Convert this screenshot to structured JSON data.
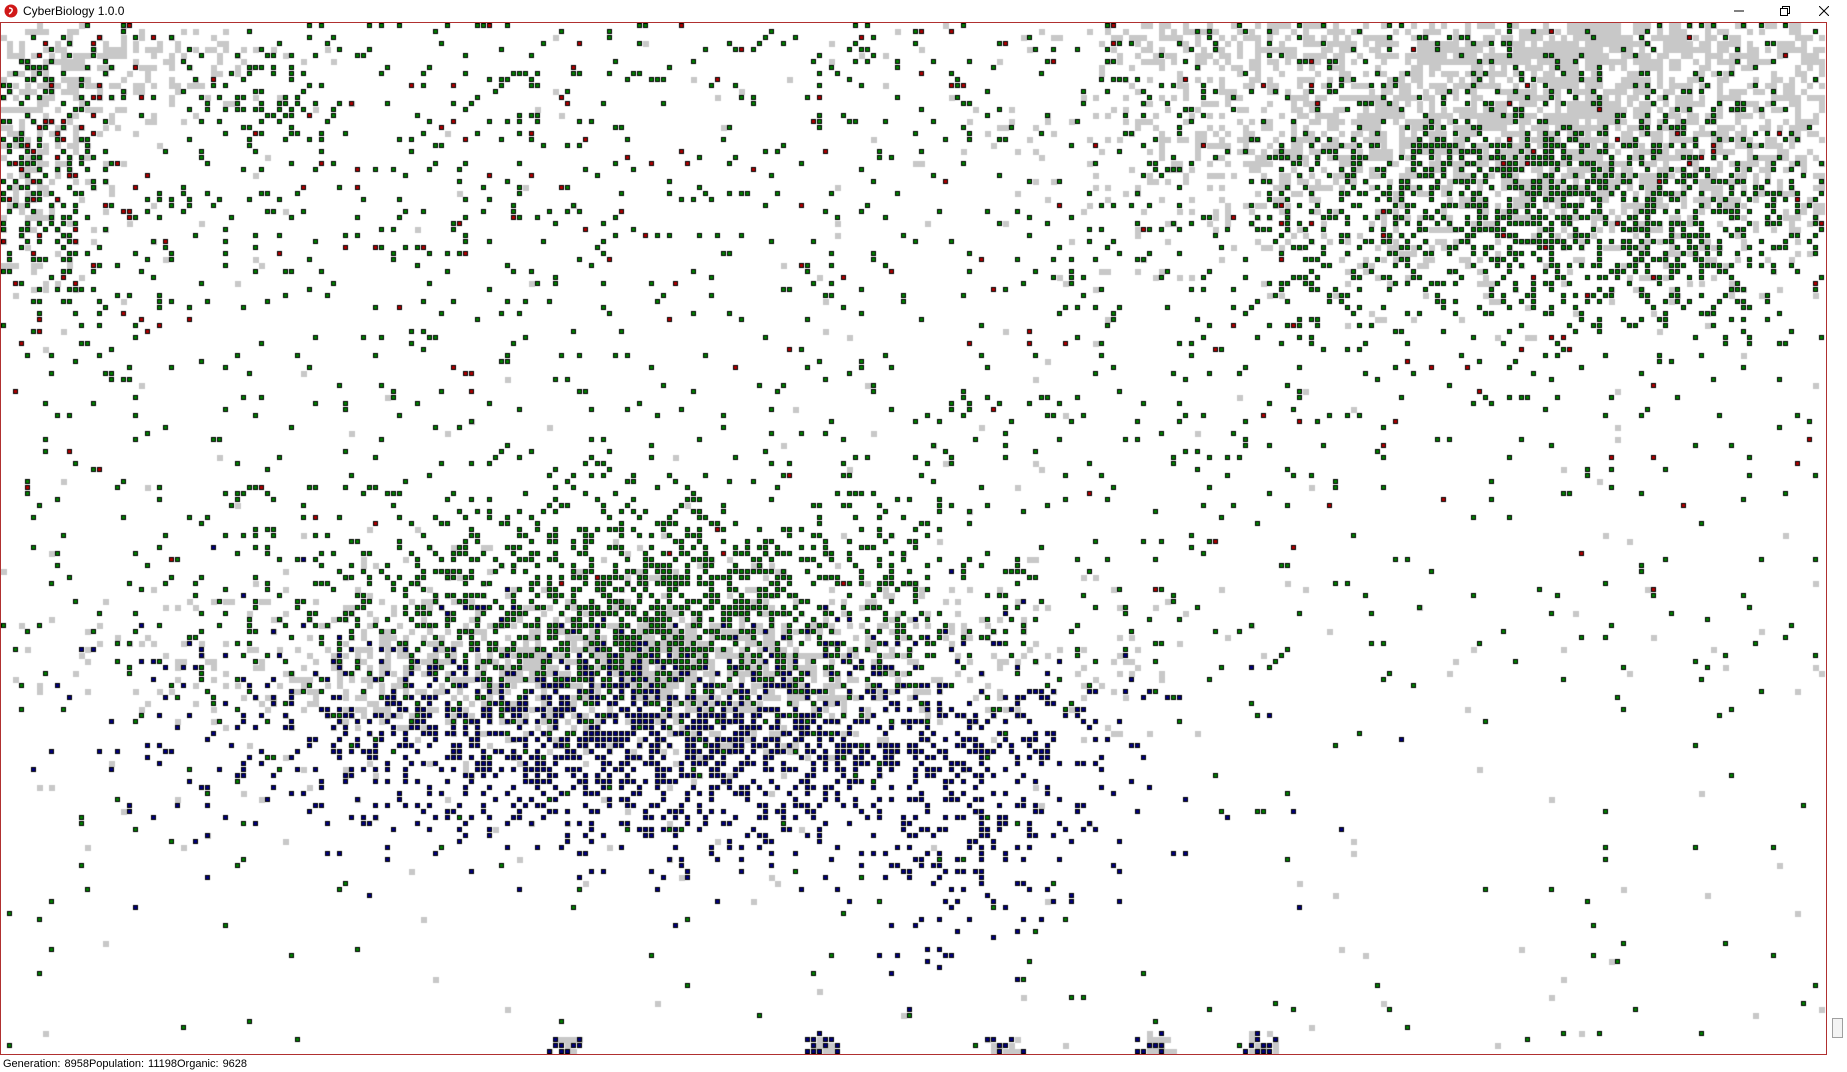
{
  "window": {
    "title": "CyberBiology 1.0.0",
    "controls": {
      "minimize_icon": "minimize-icon",
      "restore_icon": "restore-icon",
      "close_icon": "close-icon"
    }
  },
  "status": {
    "generation_label": "Generation:",
    "generation_value": "8958",
    "population_label": "Population:",
    "population_value": "11198",
    "organic_label": "Organic:",
    "organic_value": "9628"
  },
  "world": {
    "cell_colors": {
      "photosynthesis": "#008000",
      "predator": "#b00000",
      "mineral": "#000080",
      "organic": "#c8c8c8",
      "border": "#b03030",
      "empty": "#ffffff"
    }
  }
}
